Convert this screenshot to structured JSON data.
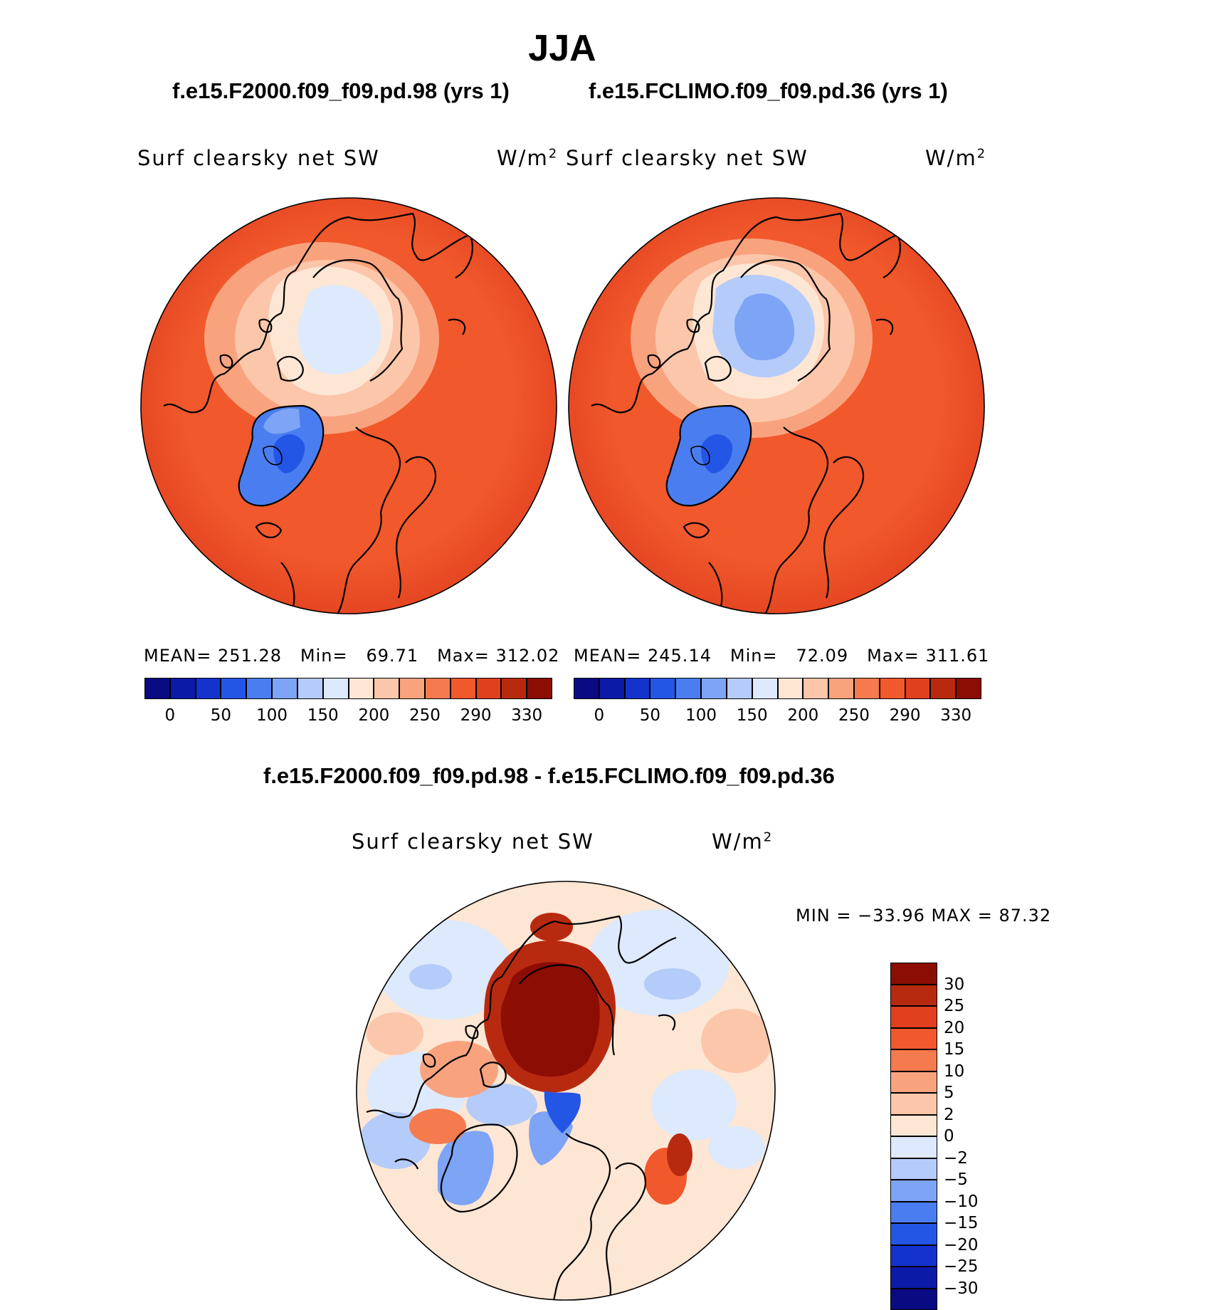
{
  "figure": {
    "season": "JJA",
    "variable": "Surf clearsky net SW",
    "units_base": "W/m",
    "units_exp": "2"
  },
  "panels": [
    {
      "case": "f.e15.F2000.f09_f09.pd.98 (yrs 1)",
      "mean_label": "MEAN=",
      "mean": "251.28",
      "min_label": "Min=",
      "min": "69.71",
      "max_label": "Max=",
      "max": "312.02"
    },
    {
      "case": "f.e15.FCLIMO.f09_f09.pd.36 (yrs 1)",
      "mean_label": "MEAN=",
      "mean": "245.14",
      "min_label": "Min=",
      "min": "72.09",
      "max_label": "Max=",
      "max": "311.61"
    }
  ],
  "colorbar_top": {
    "colors": [
      "#0a0a82",
      "#0c1aa8",
      "#1433cc",
      "#2456e6",
      "#4a7ef0",
      "#7ea4f5",
      "#b5ccfa",
      "#dde9fc",
      "#fde6d4",
      "#fcc6aa",
      "#f9a37e",
      "#f57a4e",
      "#f1582c",
      "#e0401e",
      "#b82a10",
      "#8c0d04"
    ],
    "ticks": [
      "0",
      "50",
      "100",
      "150",
      "200",
      "250",
      "290",
      "330"
    ]
  },
  "difference": {
    "title": "f.e15.F2000.f09_f09.pd.98 - f.e15.FCLIMO.f09_f09.pd.36",
    "minmax_text": "MIN = −33.96 MAX =   87.32",
    "colors_top_to_bottom": [
      "#8c0d04",
      "#b82a10",
      "#e0401e",
      "#f1582c",
      "#f57a4e",
      "#f9a37e",
      "#fcc6aa",
      "#fde6d4",
      "#dde9fc",
      "#b5ccfa",
      "#7ea4f5",
      "#4a7ef0",
      "#2456e6",
      "#1433cc",
      "#0c1aa8",
      "#0a0a82"
    ],
    "tick_labels": [
      "30",
      "25",
      "20",
      "15",
      "10",
      "5",
      "2",
      "0",
      "−2",
      "−5",
      "−10",
      "−15",
      "−20",
      "−25",
      "−30"
    ]
  }
}
